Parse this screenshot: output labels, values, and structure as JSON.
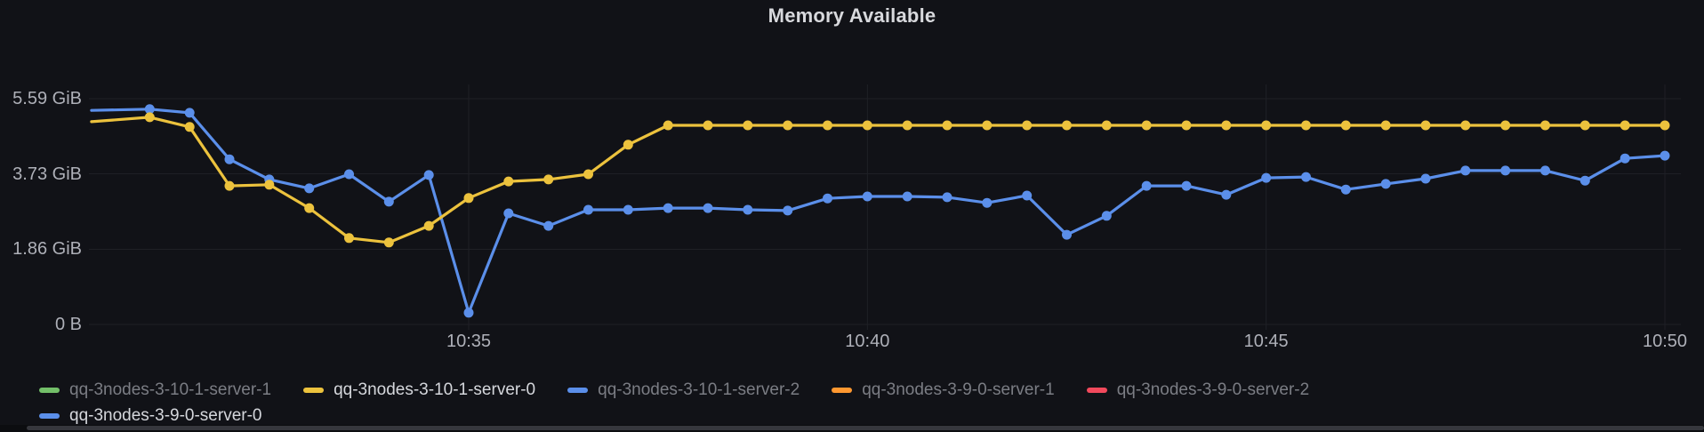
{
  "panel": {
    "title": "Memory Available"
  },
  "colors": {
    "background": "#111217",
    "gridline": "#1F2026",
    "axis_text": "#AEB0B8",
    "title_text": "#D8D9DD",
    "legend_dim_text": "#7B7D84",
    "legend_bright_text": "#D5D7DC",
    "green": "#73BF69",
    "yellow": "#ECC23D",
    "blue": "#5B8FEA",
    "orange": "#FF9830",
    "red": "#F2495C"
  },
  "legend": {
    "rows": [
      [
        {
          "label": "qq-3nodes-3-10-1-server-1",
          "color": "#73BF69",
          "emphasized": false
        },
        {
          "label": "qq-3nodes-3-10-1-server-0",
          "color": "#ECC23D",
          "emphasized": true
        },
        {
          "label": "qq-3nodes-3-10-1-server-2",
          "color": "#5B8FEA",
          "emphasized": false
        },
        {
          "label": "qq-3nodes-3-9-0-server-1",
          "color": "#FF9830",
          "emphasized": false
        },
        {
          "label": "qq-3nodes-3-9-0-server-2",
          "color": "#F2495C",
          "emphasized": false
        }
      ],
      [
        {
          "label": "qq-3nodes-3-9-0-server-0",
          "color": "#5B8FEA",
          "emphasized": true
        }
      ]
    ]
  },
  "chart_data": {
    "type": "line",
    "title": "Memory Available",
    "unit": "bytes (GiB)",
    "grid": true,
    "legend_position": "bottom",
    "y_ticks": [
      {
        "label": "5.59 GiB",
        "value": 5.59
      },
      {
        "label": "3.73 GiB",
        "value": 3.73
      },
      {
        "label": "1.86 GiB",
        "value": 1.86
      },
      {
        "label": "0 B",
        "value": 0
      }
    ],
    "x_ticks": [
      {
        "label": "10:35",
        "minutes": 35
      },
      {
        "label": "10:40",
        "minutes": 40
      },
      {
        "label": "10:45",
        "minutes": 45
      },
      {
        "label": "10:50",
        "minutes": 50
      }
    ],
    "x_unit": "minutes after 10:00",
    "x_range_visible": [
      30.27,
      50
    ],
    "ylim": [
      0,
      5.95
    ],
    "point_interval_seconds": 30,
    "series": [
      {
        "name": "qq-3nodes-3-9-0-server-0",
        "color": "#5B8FEA",
        "lead_in": [
          30.27,
          5.3
        ],
        "points": [
          [
            31.0,
            5.33
          ],
          [
            31.5,
            5.24
          ],
          [
            32.0,
            4.09
          ],
          [
            32.5,
            3.59
          ],
          [
            33.0,
            3.37
          ],
          [
            33.5,
            3.72
          ],
          [
            34.0,
            3.04
          ],
          [
            34.5,
            3.7
          ],
          [
            35.0,
            0.29
          ],
          [
            35.5,
            2.75
          ],
          [
            36.0,
            2.44
          ],
          [
            36.5,
            2.84
          ],
          [
            37.0,
            2.84
          ],
          [
            37.5,
            2.88
          ],
          [
            38.0,
            2.88
          ],
          [
            38.5,
            2.84
          ],
          [
            39.0,
            2.82
          ],
          [
            39.5,
            3.12
          ],
          [
            40.0,
            3.17
          ],
          [
            40.5,
            3.17
          ],
          [
            41.0,
            3.15
          ],
          [
            41.5,
            3.01
          ],
          [
            42.0,
            3.19
          ],
          [
            42.5,
            2.22
          ],
          [
            43.0,
            2.69
          ],
          [
            43.5,
            3.43
          ],
          [
            44.0,
            3.43
          ],
          [
            44.5,
            3.21
          ],
          [
            45.0,
            3.63
          ],
          [
            45.5,
            3.65
          ],
          [
            46.0,
            3.34
          ],
          [
            46.5,
            3.48
          ],
          [
            47.0,
            3.61
          ],
          [
            47.5,
            3.81
          ],
          [
            48.0,
            3.81
          ],
          [
            48.5,
            3.81
          ],
          [
            49.0,
            3.56
          ],
          [
            49.5,
            4.11
          ],
          [
            50.0,
            4.18
          ]
        ]
      },
      {
        "name": "qq-3nodes-3-10-1-server-0",
        "color": "#ECC23D",
        "lead_in": [
          30.27,
          5.02
        ],
        "points": [
          [
            31.0,
            5.13
          ],
          [
            31.5,
            4.89
          ],
          [
            32.0,
            3.43
          ],
          [
            32.5,
            3.46
          ],
          [
            33.0,
            2.88
          ],
          [
            33.5,
            2.14
          ],
          [
            34.0,
            2.03
          ],
          [
            34.5,
            2.44
          ],
          [
            35.0,
            3.13
          ],
          [
            35.5,
            3.54
          ],
          [
            36.0,
            3.59
          ],
          [
            36.5,
            3.72
          ],
          [
            37.0,
            4.45
          ],
          [
            37.5,
            4.93
          ],
          [
            38.0,
            4.93
          ],
          [
            38.5,
            4.93
          ],
          [
            39.0,
            4.93
          ],
          [
            39.5,
            4.93
          ],
          [
            40.0,
            4.93
          ],
          [
            40.5,
            4.93
          ],
          [
            41.0,
            4.93
          ],
          [
            41.5,
            4.93
          ],
          [
            42.0,
            4.93
          ],
          [
            42.5,
            4.93
          ],
          [
            43.0,
            4.93
          ],
          [
            43.5,
            4.93
          ],
          [
            44.0,
            4.93
          ],
          [
            44.5,
            4.93
          ],
          [
            45.0,
            4.93
          ],
          [
            45.5,
            4.93
          ],
          [
            46.0,
            4.93
          ],
          [
            46.5,
            4.93
          ],
          [
            47.0,
            4.93
          ],
          [
            47.5,
            4.93
          ],
          [
            48.0,
            4.93
          ],
          [
            48.5,
            4.93
          ],
          [
            49.0,
            4.93
          ],
          [
            49.5,
            4.93
          ],
          [
            50.0,
            4.93
          ]
        ]
      }
    ]
  }
}
